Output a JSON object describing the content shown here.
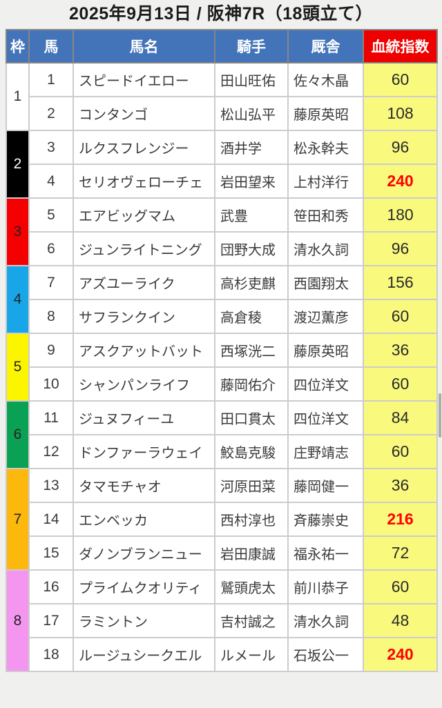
{
  "title": "2025年9月13日 / 阪神7R（18頭立て）",
  "table": {
    "headers": [
      "枠",
      "馬",
      "馬名",
      "騎手",
      "厩舎",
      "血統指数"
    ],
    "header_style": {
      "bg": "#4374b9",
      "text": "#ffffff",
      "index_bg": "#ee0000"
    },
    "index_cell_bg": "#f9f97e",
    "hot_color": "#ff0000",
    "frames": [
      {
        "no": "1",
        "span": 2,
        "bg": "#ffffff",
        "text": "#333333"
      },
      {
        "no": "2",
        "span": 2,
        "bg": "#000000",
        "text": "#ffffff"
      },
      {
        "no": "3",
        "span": 2,
        "bg": "#f50000",
        "text": "#222222"
      },
      {
        "no": "4",
        "span": 2,
        "bg": "#18a6e8",
        "text": "#222222"
      },
      {
        "no": "5",
        "span": 2,
        "bg": "#fcf500",
        "text": "#222222"
      },
      {
        "no": "6",
        "span": 2,
        "bg": "#0ba154",
        "text": "#222222"
      },
      {
        "no": "7",
        "span": 3,
        "bg": "#fcb80c",
        "text": "#222222"
      },
      {
        "no": "8",
        "span": 3,
        "bg": "#f495f0",
        "text": "#222222"
      }
    ],
    "rows": [
      {
        "horse": "1",
        "name": "スピードイエロー",
        "jockey": "田山旺佑",
        "stable": "佐々木晶",
        "index": "60",
        "hot": false
      },
      {
        "horse": "2",
        "name": "コンタンゴ",
        "jockey": "松山弘平",
        "stable": "藤原英昭",
        "index": "108",
        "hot": false
      },
      {
        "horse": "3",
        "name": "ルクスフレンジー",
        "jockey": "酒井学",
        "stable": "松永幹夫",
        "index": "96",
        "hot": false
      },
      {
        "horse": "4",
        "name": "セリオヴェローチェ",
        "jockey": "岩田望来",
        "stable": "上村洋行",
        "index": "240",
        "hot": true
      },
      {
        "horse": "5",
        "name": "エアビッグマム",
        "jockey": "武豊",
        "stable": "笹田和秀",
        "index": "180",
        "hot": false
      },
      {
        "horse": "6",
        "name": "ジュンライトニング",
        "jockey": "団野大成",
        "stable": "清水久詞",
        "index": "96",
        "hot": false
      },
      {
        "horse": "7",
        "name": "アズユーライク",
        "jockey": "高杉吏麒",
        "stable": "西園翔太",
        "index": "156",
        "hot": false
      },
      {
        "horse": "8",
        "name": "サフランクイン",
        "jockey": "高倉稜",
        "stable": "渡辺薫彦",
        "index": "60",
        "hot": false
      },
      {
        "horse": "9",
        "name": "アスクアットバット",
        "jockey": "西塚洸二",
        "stable": "藤原英昭",
        "index": "36",
        "hot": false
      },
      {
        "horse": "10",
        "name": "シャンパンライフ",
        "jockey": "藤岡佑介",
        "stable": "四位洋文",
        "index": "60",
        "hot": false
      },
      {
        "horse": "11",
        "name": "ジュヌフィーユ",
        "jockey": "田口貫太",
        "stable": "四位洋文",
        "index": "84",
        "hot": false
      },
      {
        "horse": "12",
        "name": "ドンファーラウェイ",
        "jockey": "鮫島克駿",
        "stable": "庄野靖志",
        "index": "60",
        "hot": false
      },
      {
        "horse": "13",
        "name": "タマモチャオ",
        "jockey": "河原田菜",
        "stable": "藤岡健一",
        "index": "36",
        "hot": false
      },
      {
        "horse": "14",
        "name": "エンベッカ",
        "jockey": "西村淳也",
        "stable": "斉藤崇史",
        "index": "216",
        "hot": true
      },
      {
        "horse": "15",
        "name": "ダノンブランニュー",
        "jockey": "岩田康誠",
        "stable": "福永祐一",
        "index": "72",
        "hot": false
      },
      {
        "horse": "16",
        "name": "プライムクオリティ",
        "jockey": "鷲頭虎太",
        "stable": "前川恭子",
        "index": "60",
        "hot": false
      },
      {
        "horse": "17",
        "name": "ラミントン",
        "jockey": "吉村誠之",
        "stable": "清水久詞",
        "index": "48",
        "hot": false
      },
      {
        "horse": "18",
        "name": "ルージュシークエル",
        "jockey": "ルメール",
        "stable": "石坂公一",
        "index": "240",
        "hot": true
      }
    ]
  }
}
